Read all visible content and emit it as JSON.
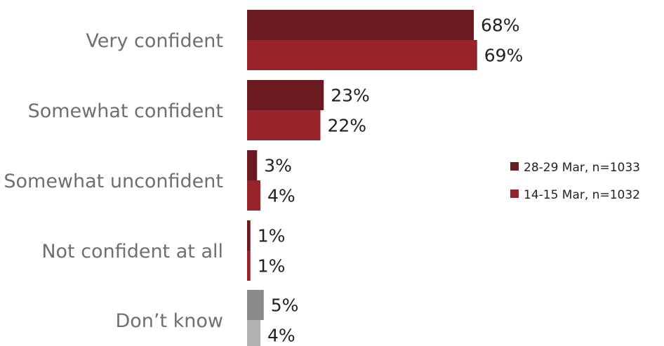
{
  "chart_data": {
    "type": "bar",
    "orientation": "horizontal",
    "categories": [
      "Very confident",
      "Somewhat confident",
      "Somewhat unconfident",
      "Not confident at all",
      "Don’t know"
    ],
    "series": [
      {
        "name": "28-29 Mar, n=1033",
        "values": [
          68,
          23,
          3,
          1,
          5
        ],
        "labels": [
          "68%",
          "23%",
          "3%",
          "1%",
          "5%"
        ],
        "color": "#6b1a22"
      },
      {
        "name": "14-15 Mar, n=1032",
        "values": [
          69,
          22,
          4,
          1,
          4
        ],
        "labels": [
          "69%",
          "22%",
          "4%",
          "1%",
          "4%"
        ],
        "color": "#962428"
      }
    ],
    "category_colors": {
      "Don’t know": [
        "#8a8a8a",
        "#b1b1b1"
      ]
    },
    "xlim": [
      0,
      100
    ],
    "grid": false,
    "legend_position": "right"
  }
}
